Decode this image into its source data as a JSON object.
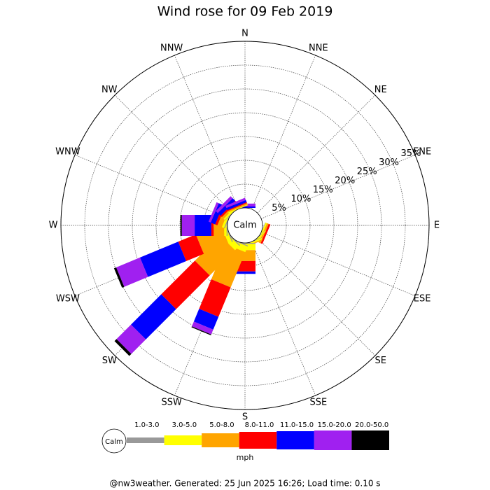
{
  "chart_data": {
    "type": "windrose",
    "title": "Wind rose for 09 Feb 2019",
    "calm_label": "Calm",
    "units": "mph",
    "footer": "@nw3weather. Generated: 25 Jun 2025 16:26; Load time: 0.10 s",
    "categories": [
      "N",
      "NNE",
      "NE",
      "ENE",
      "E",
      "ESE",
      "SE",
      "SSE",
      "S",
      "SSW",
      "SW",
      "WSW",
      "W",
      "WNW",
      "NW",
      "NNW"
    ],
    "rlim": [
      0,
      35
    ],
    "rticks": [
      {
        "value": 5,
        "label": "5%"
      },
      {
        "value": 10,
        "label": "10%"
      },
      {
        "value": 15,
        "label": "15%"
      },
      {
        "value": 20,
        "label": "20%"
      },
      {
        "value": 25,
        "label": "25%"
      },
      {
        "value": 30,
        "label": "30%"
      },
      {
        "value": 35,
        "label": "35%"
      }
    ],
    "grid": true,
    "series": [
      {
        "name": "1.0-3.0",
        "color": "#999999",
        "values": [
          0,
          0,
          0,
          0,
          0,
          0.1,
          0.1,
          0.1,
          0.2,
          0.2,
          0.2,
          0.2,
          0.2,
          0.2,
          0.1,
          0
        ]
      },
      {
        "name": "3.0-5.0",
        "color": "#ffff00",
        "values": [
          0,
          0,
          0,
          0,
          0,
          0.3,
          0.2,
          0.3,
          1.3,
          1.3,
          1.3,
          0.8,
          0.5,
          0.5,
          0.4,
          0.2
        ]
      },
      {
        "name": "5.0-8.0",
        "color": "#ffa500",
        "values": [
          0,
          0,
          0,
          0,
          0,
          0.4,
          0,
          0.2,
          2.3,
          8.0,
          7.5,
          5.6,
          2.2,
          1.0,
          0.5,
          0.3
        ]
      },
      {
        "name": "8.0-11.0",
        "color": "#ff0000",
        "values": [
          0,
          0,
          0,
          0,
          0,
          0.4,
          0,
          0,
          2.2,
          6.7,
          10.0,
          4.0,
          0.5,
          0.5,
          0.4,
          0.2
        ]
      },
      {
        "name": "11.0-15.0",
        "color": "#0000ff",
        "values": [
          0.3,
          0,
          0,
          0,
          0,
          0,
          0,
          0,
          0.5,
          2.9,
          9.0,
          8.7,
          3.5,
          1.0,
          0.8,
          0.5
        ]
      },
      {
        "name": "15.0-20.0",
        "color": "#a020f0",
        "values": [
          0.6,
          0,
          0,
          0,
          0,
          0,
          0,
          0,
          0,
          1.1,
          4.3,
          5.4,
          2.7,
          0.5,
          0.6,
          0.5
        ]
      },
      {
        "name": "20.0-50.0",
        "color": "#000000",
        "values": [
          0,
          0,
          0,
          0,
          0,
          0,
          0,
          0,
          0,
          0.2,
          0.6,
          0.5,
          0.3,
          0,
          0,
          0
        ]
      }
    ]
  }
}
